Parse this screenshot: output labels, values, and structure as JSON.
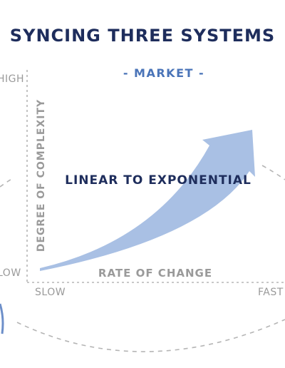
{
  "title": "SYNCING THREE SYSTEMS",
  "section_label": "- MARKET -",
  "axes": {
    "y_label": "DEGREE OF COMPLEXITY",
    "x_label": "RATE OF CHANGE",
    "y_high": "HIGH",
    "y_low": "LOW",
    "x_slow": "SLOW",
    "x_fast": "FAST"
  },
  "arrow_label": "LINEAR TO EXPONENTIAL",
  "colors": {
    "title": "#1e2d5c",
    "section": "#4a74b8",
    "axis_text": "#9a9a9a",
    "arrow_fill": "#a9c0e4",
    "dashed_line": "#b5b5b5",
    "circle_accent": "#6d8fc9"
  }
}
